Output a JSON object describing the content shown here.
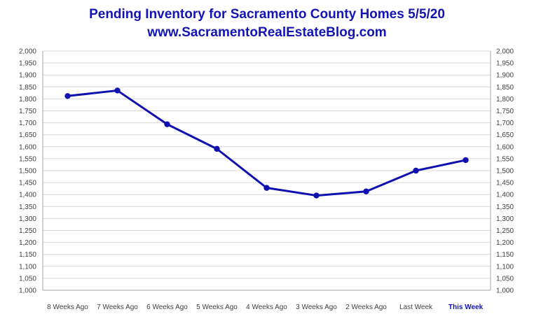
{
  "colors": {
    "title": "#1414b4",
    "series": "#1010b0",
    "grid": "#d9d9d9",
    "axis_text": "#404040",
    "highlight_label": "#1414b4"
  },
  "chart_data": {
    "type": "line",
    "title": "Pending Inventory for Sacramento County Homes 5/5/20",
    "subtitle": "www.SacramentoRealEstateBlog.com",
    "categories": [
      "8 Weeks Ago",
      "7 Weeks Ago",
      "6 Weeks Ago",
      "5 Weeks Ago",
      "4 Weeks Ago",
      "3 Weeks Ago",
      "2 Weeks Ago",
      "Last Week",
      "This Week"
    ],
    "highlight_category": "This Week",
    "series": [
      {
        "values": [
          1812,
          1835,
          1694,
          1591,
          1428,
          1396,
          1413,
          1500,
          1544
        ]
      }
    ],
    "ylim": [
      1000,
      2000
    ],
    "y_step": 50,
    "y_ticks": [
      "1,000",
      "1,050",
      "1,100",
      "1,150",
      "1,200",
      "1,250",
      "1,300",
      "1,350",
      "1,400",
      "1,450",
      "1,500",
      "1,550",
      "1,600",
      "1,650",
      "1,700",
      "1,750",
      "1,800",
      "1,850",
      "1,900",
      "1,950",
      "2,000"
    ],
    "secondary_y_axis": true,
    "grid": true,
    "legend": "none",
    "markers": true
  }
}
